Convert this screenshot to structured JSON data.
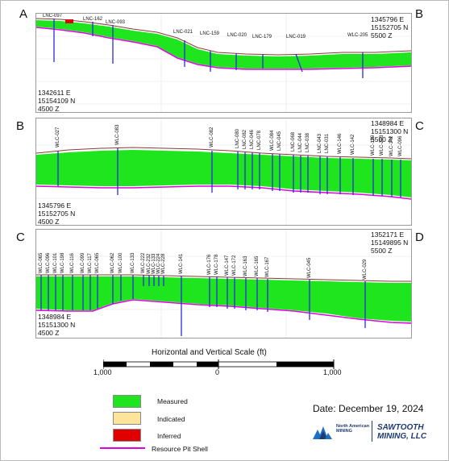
{
  "colors": {
    "measured": "#1ee51e",
    "indicated": "#fde49b",
    "inferred": "#e00000",
    "pit_shell": "#e000e0",
    "drillhole": "#2b2bd6",
    "topography": "#8a3a3a"
  },
  "sections": [
    {
      "start_label": "A",
      "end_label": "B",
      "start_coord": "1342611 E\n15154109 N\n4500 Z",
      "end_coord": "1345796 E\n15152705 N\n5500 Z",
      "drillholes": [
        "LNC-097",
        "LNC-162",
        "LNC-093",
        "LNC-021",
        "LNC-159",
        "LNC-020",
        "LNC-179",
        "LNC-019",
        "WLC-205"
      ]
    },
    {
      "start_label": "B",
      "end_label": "C",
      "start_coord": "1345796 E\n15152705 N\n4500 Z",
      "end_coord": "1348984 E\n15151300 N\n5500 Z",
      "drillholes": [
        "WLC-027",
        "WLC-083",
        "WLC-082",
        "LNC-080",
        "LNC-082",
        "LNC-046",
        "LNC-078",
        "WLC-084",
        "LNC-045",
        "LNC-068",
        "LNC-044",
        "LNC-038",
        "LNC-043",
        "LNC-031",
        "WLC-146",
        "WLC-142",
        "WLC-139",
        "WLC-203",
        "WLC-142",
        "WLC-096"
      ]
    },
    {
      "start_label": "C",
      "end_label": "D",
      "start_coord": "1348984 E\n15151300 N\n4500 Z",
      "end_coord": "1352171 E\n15149895 N\n5500 Z",
      "drillholes": [
        "WLC-065",
        "WLC-096",
        "WLC-101",
        "WLC-198",
        "WLC-116",
        "WLC-099",
        "WLC-117",
        "WLC-065",
        "WLC-062",
        "WLC-100",
        "WLC-133",
        "WLC-222",
        "WLC-232",
        "WLC-133",
        "WLC-224",
        "WLC-228",
        "WLC-141",
        "WLC-176",
        "WLC-178",
        "WLC-147",
        "WLC-172",
        "WLC-163",
        "WLC-165",
        "WLC-167",
        "WLC-045",
        "WLC-029"
      ]
    }
  ],
  "scale": {
    "title": "Horizontal and Vertical Scale (ft)",
    "ticks": [
      "1,000",
      "0",
      "1,000"
    ]
  },
  "legend": {
    "measured": "Measured",
    "indicated": "Indicated",
    "inferred": "Inferred",
    "pit_shell": "Resource Pit Shell"
  },
  "date": "Date: December 19, 2024",
  "logos": {
    "north_american_mining": "North American MINING",
    "sawtooth": "SAWTOOTH MINING, LLC"
  }
}
